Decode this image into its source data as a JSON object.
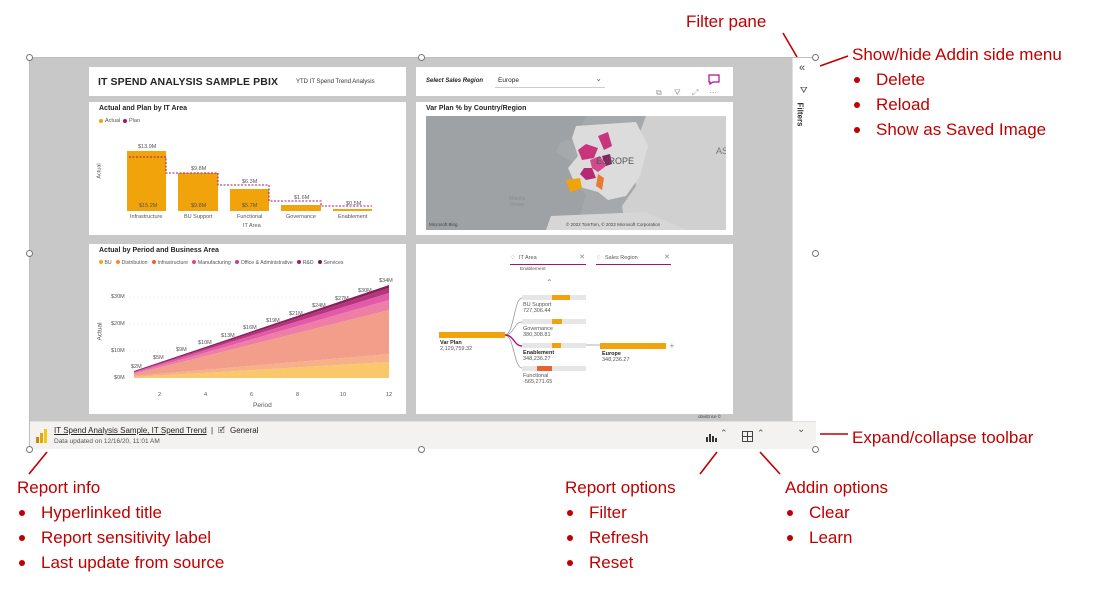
{
  "annotations": {
    "filter_pane": "Filter pane",
    "side_menu": {
      "title": "Show/hide Addin side menu",
      "items": [
        "Delete",
        "Reload",
        "Show as Saved Image"
      ]
    },
    "expand_toolbar": "Expand/collapse toolbar",
    "report_info": {
      "title": "Report info",
      "items": [
        "Hyperlinked title",
        "Report sensitivity label",
        "Last update from source"
      ]
    },
    "report_options": {
      "title": "Report options",
      "items": [
        "Filter",
        "Refresh",
        "Reset"
      ]
    },
    "addin_options": {
      "title": "Addin options",
      "items": [
        "Clear",
        "Learn"
      ]
    }
  },
  "report": {
    "title": "IT SPEND ANALYSIS SAMPLE PBIX",
    "subtitle": "YTD IT Spend Trend Analysis",
    "slicer_label": "Select Sales Region",
    "slicer_value": "Europe",
    "filters_label": "Filters",
    "powered_by": "obviEnce ©"
  },
  "bar_chart": {
    "title": "Actual and Plan by IT Area",
    "legend": [
      "Actual",
      "Plan"
    ],
    "ylabel": "Actual",
    "xlabel": "IT Area",
    "categories": [
      "Infrastructure",
      "BU Support",
      "Functional",
      "Governance",
      "Enablement"
    ],
    "plan_labels": [
      "$13.9M",
      "$9.8M",
      "$6.3M",
      "$1.6M",
      "$0.5M"
    ],
    "actual_labels": [
      "$15.2M",
      "$9.8M",
      "$5.7M",
      "",
      ""
    ]
  },
  "map": {
    "title": "Var Plan % by Country/Region",
    "label_europe": "EUROPE",
    "label_as": "AS",
    "label_ocean": "Atlantic Ocean",
    "copyright": "© 2022 TomTom, © 2022 Microsoft Corporation",
    "brand": "Microsoft Bing"
  },
  "area_chart": {
    "title": "Actual by Period and Business Area",
    "legend": [
      "BU",
      "Distribution",
      "Infrastructure",
      "Manufacturing",
      "Office & Administrative",
      "R&D",
      "Services"
    ],
    "legend_colors": [
      "#f5a623",
      "#f28a2e",
      "#e8632d",
      "#e0457b",
      "#c83d95",
      "#9c1f6e",
      "#7a1d4e"
    ],
    "ylabel": "Actual",
    "xlabel": "Period",
    "yticks": [
      "$30M",
      "$20M",
      "$10M",
      "$0M"
    ],
    "xticks": [
      "2",
      "4",
      "6",
      "8",
      "10",
      "12"
    ],
    "point_labels": [
      "$2M",
      "$5M",
      "$9M",
      "$10M",
      "$13M",
      "$16M",
      "$19M",
      "$21M",
      "$24M",
      "$27M",
      "$30M",
      "$34M"
    ]
  },
  "decomp": {
    "chip1": "IT Area",
    "chip1_sub": "Enablement",
    "chip2": "Sales Region",
    "root_label": "Var Plan",
    "root_value": "2,129,759.32",
    "nodes": [
      {
        "label": "BU Support",
        "value": "727,306.44"
      },
      {
        "label": "Governance",
        "value": "380,308.81"
      },
      {
        "label": "Enablement",
        "value": "348,236.27"
      },
      {
        "label": "Functional",
        "value": "-565,271.65"
      }
    ],
    "leaf_label": "Europe",
    "leaf_value": "348,236.27"
  },
  "toolbar": {
    "title_link": "IT Spend Analysis Sample, IT Spend Trend",
    "separator": "|",
    "sensitivity": "General",
    "updated": "Data updated on 12/16/20, 11:01 AM"
  }
}
